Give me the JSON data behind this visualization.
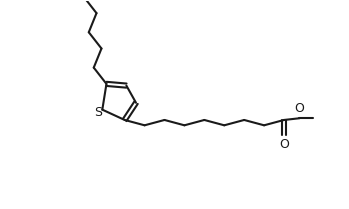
{
  "bg_color": "#ffffff",
  "line_color": "#1a1a1a",
  "line_width": 1.5,
  "figsize": [
    3.49,
    2.09
  ],
  "dpi": 100,
  "xlim": [
    0,
    10
  ],
  "ylim": [
    0,
    6
  ],
  "s_label": "S",
  "o_label": "O",
  "fontsize": 9
}
